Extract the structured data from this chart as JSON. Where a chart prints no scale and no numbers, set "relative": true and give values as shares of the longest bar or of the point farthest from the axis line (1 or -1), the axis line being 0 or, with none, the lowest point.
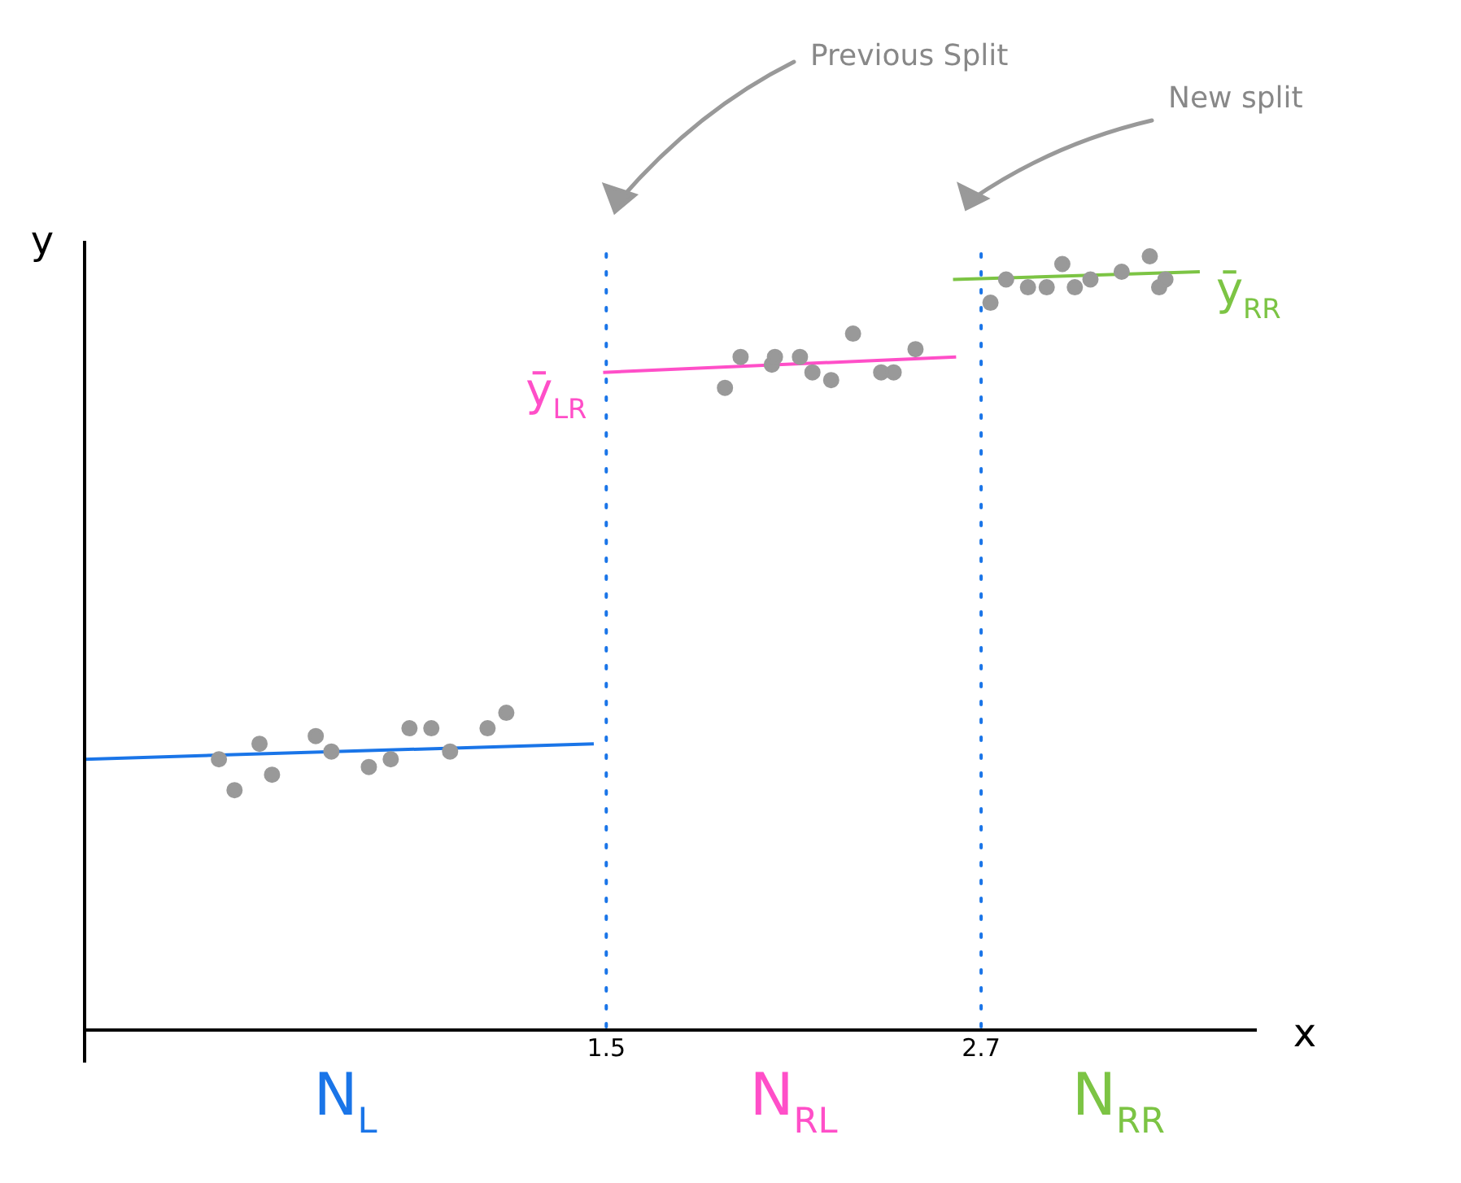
{
  "chart_data": {
    "type": "scatter",
    "xlabel": "x",
    "ylabel": "y",
    "relative": true,
    "xlim": [
      -0.17,
      3.58
    ],
    "xticks": [
      1.5,
      2.7
    ],
    "tick_labels": "x",
    "grid": false,
    "legend": false,
    "series": [
      {
        "type": "scatter",
        "color": "#999999",
        "marker": "circle",
        "x": [
          0.26,
          0.31,
          0.39,
          0.43,
          0.57,
          0.62,
          0.74,
          0.81,
          0.87,
          0.94,
          1.0,
          1.12,
          1.18,
          1.88,
          1.93,
          2.03,
          2.04,
          2.12,
          2.16,
          2.22,
          2.29,
          2.38,
          2.42,
          2.49,
          2.73,
          2.78,
          2.85,
          2.91,
          2.96,
          3.0,
          3.05,
          3.15,
          3.24,
          3.27,
          3.29
        ],
        "values": [
          0.35,
          0.31,
          0.37,
          0.33,
          0.38,
          0.36,
          0.34,
          0.35,
          0.39,
          0.39,
          0.36,
          0.39,
          0.41,
          0.83,
          0.87,
          0.86,
          0.87,
          0.87,
          0.85,
          0.84,
          0.9,
          0.85,
          0.85,
          0.88,
          0.94,
          0.97,
          0.96,
          0.96,
          0.99,
          0.96,
          0.97,
          0.98,
          1.0,
          0.96,
          0.97
        ]
      },
      {
        "type": "line",
        "color": "#1a75e8",
        "marker": "none",
        "x": [
          -0.17,
          1.46
        ],
        "values": [
          0.35,
          0.37
        ]
      },
      {
        "type": "line",
        "name": "ȳ$_{LR}$",
        "color": "#ff4fc8",
        "marker": "none",
        "x": [
          1.49,
          2.62
        ],
        "values": [
          0.85,
          0.87
        ]
      },
      {
        "type": "line",
        "name": "ȳ$_{RR}$",
        "color": "#7cc444",
        "marker": "none",
        "x": [
          2.61,
          3.4
        ],
        "values": [
          0.97,
          0.98
        ]
      }
    ],
    "ref_lines": [
      {
        "axis": "x",
        "value": 1.5,
        "color": "#1a75e8",
        "line_style": "dotted"
      },
      {
        "axis": "x",
        "value": 2.7,
        "color": "#1a75e8",
        "line_style": "dotted"
      }
    ],
    "annotations": [
      "Previous Split",
      "New split",
      "N$_{L}$",
      "N$_{RL}$",
      "N$_{RR}$"
    ]
  }
}
